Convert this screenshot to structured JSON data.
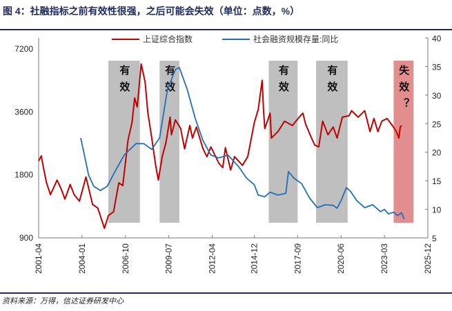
{
  "title": "图 4：社融指标之前有效性很强，之后可能会失效（单位：点数，%）",
  "source": "资料来源：万得，信达证券研发中心",
  "chart_data": {
    "type": "line",
    "title": "图 4：社融指标之前有效性很强，之后可能会失效（单位：点数，%）",
    "x_tick_labels": [
      "2001-04",
      "2004-01",
      "2006-10",
      "2009-07",
      "2012-04",
      "2014-12",
      "2017-09",
      "2020-06",
      "2023-03",
      "2025-12"
    ],
    "xlim": [
      "2001-04",
      "2025-12"
    ],
    "left_axis": {
      "scale": "log",
      "ylim": [
        900,
        7200
      ],
      "ticks": [
        900,
        1800,
        3600,
        7200
      ]
    },
    "right_axis": {
      "scale": "linear",
      "ylim": [
        5,
        40
      ],
      "ticks": [
        5,
        10,
        15,
        20,
        25,
        30,
        35,
        40
      ]
    },
    "legend_placement": "top-center",
    "grid": false,
    "series": [
      {
        "name": "上证综合指数",
        "axis": "left",
        "color": "#c00000",
        "points": [
          [
            "2001-04",
            2100
          ],
          [
            "2001-06",
            2220
          ],
          [
            "2001-08",
            1900
          ],
          [
            "2001-10",
            1650
          ],
          [
            "2002-01",
            1450
          ],
          [
            "2002-06",
            1700
          ],
          [
            "2002-09",
            1550
          ],
          [
            "2002-12",
            1380
          ],
          [
            "2003-04",
            1620
          ],
          [
            "2003-07",
            1450
          ],
          [
            "2003-11",
            1350
          ],
          [
            "2004-04",
            1760
          ],
          [
            "2004-09",
            1300
          ],
          [
            "2005-01",
            1250
          ],
          [
            "2005-06",
            1000
          ],
          [
            "2005-09",
            1150
          ],
          [
            "2006-01",
            1200
          ],
          [
            "2006-05",
            1650
          ],
          [
            "2006-08",
            1600
          ],
          [
            "2006-12",
            2650
          ],
          [
            "2007-03",
            3200
          ],
          [
            "2007-05",
            4200
          ],
          [
            "2007-07",
            3800
          ],
          [
            "2007-10",
            6100
          ],
          [
            "2008-01",
            5000
          ],
          [
            "2008-03",
            3600
          ],
          [
            "2008-06",
            2700
          ],
          [
            "2008-09",
            2000
          ],
          [
            "2008-11",
            1700
          ],
          [
            "2009-02",
            2200
          ],
          [
            "2009-05",
            2600
          ],
          [
            "2009-08",
            3400
          ],
          [
            "2009-09",
            2800
          ],
          [
            "2009-12",
            3300
          ],
          [
            "2010-04",
            3000
          ],
          [
            "2010-07",
            2400
          ],
          [
            "2010-11",
            3100
          ],
          [
            "2011-01",
            2700
          ],
          [
            "2011-04",
            3050
          ],
          [
            "2011-09",
            2400
          ],
          [
            "2011-12",
            2200
          ],
          [
            "2012-03",
            2450
          ],
          [
            "2012-09",
            2050
          ],
          [
            "2012-12",
            1950
          ],
          [
            "2013-02",
            2430
          ],
          [
            "2013-06",
            1900
          ],
          [
            "2013-09",
            2200
          ],
          [
            "2014-03",
            2000
          ],
          [
            "2014-07",
            2200
          ],
          [
            "2014-12",
            3200
          ],
          [
            "2015-03",
            3700
          ],
          [
            "2015-06",
            5100
          ],
          [
            "2015-07",
            3700
          ],
          [
            "2015-08",
            3000
          ],
          [
            "2015-12",
            3550
          ],
          [
            "2016-01",
            2700
          ],
          [
            "2016-06",
            2900
          ],
          [
            "2016-11",
            3250
          ],
          [
            "2017-05",
            3100
          ],
          [
            "2017-11",
            3450
          ],
          [
            "2018-01",
            3550
          ],
          [
            "2018-03",
            3150
          ],
          [
            "2018-07",
            2750
          ],
          [
            "2018-10",
            2500
          ],
          [
            "2019-01",
            2450
          ],
          [
            "2019-04",
            3250
          ],
          [
            "2019-08",
            2800
          ],
          [
            "2019-12",
            3050
          ],
          [
            "2020-03",
            2700
          ],
          [
            "2020-07",
            3400
          ],
          [
            "2020-12",
            3450
          ],
          [
            "2021-02",
            3650
          ],
          [
            "2021-07",
            3400
          ],
          [
            "2021-12",
            3650
          ],
          [
            "2022-04",
            2900
          ],
          [
            "2022-07",
            3350
          ],
          [
            "2022-10",
            2900
          ],
          [
            "2023-01",
            3250
          ],
          [
            "2023-05",
            3350
          ],
          [
            "2023-09",
            3100
          ],
          [
            "2023-12",
            2900
          ],
          [
            "2024-02",
            2700
          ],
          [
            "2024-03",
            3050
          ],
          [
            "2024-04",
            3100
          ]
        ]
      },
      {
        "name": "社会融资规模存量:同比",
        "axis": "right",
        "color": "#1f6fb8",
        "points": [
          [
            "2003-12",
            22.5
          ],
          [
            "2004-06",
            16
          ],
          [
            "2004-10",
            14
          ],
          [
            "2005-03",
            13.3
          ],
          [
            "2005-08",
            14
          ],
          [
            "2006-03",
            17
          ],
          [
            "2006-09",
            19.5
          ],
          [
            "2007-06",
            21.5
          ],
          [
            "2007-12",
            21.5
          ],
          [
            "2008-06",
            20.5
          ],
          [
            "2008-12",
            22.5
          ],
          [
            "2009-06",
            31
          ],
          [
            "2009-12",
            34.5
          ],
          [
            "2010-03",
            34.8
          ],
          [
            "2010-09",
            31
          ],
          [
            "2011-03",
            26
          ],
          [
            "2011-09",
            22
          ],
          [
            "2012-03",
            19.5
          ],
          [
            "2012-09",
            19
          ],
          [
            "2013-04",
            19.5
          ],
          [
            "2013-12",
            17.5
          ],
          [
            "2014-06",
            15.5
          ],
          [
            "2014-12",
            14.3
          ],
          [
            "2015-03",
            12.5
          ],
          [
            "2015-08",
            12.2
          ],
          [
            "2015-12",
            13
          ],
          [
            "2016-06",
            12.5
          ],
          [
            "2016-12",
            12.8
          ],
          [
            "2017-02",
            16.6
          ],
          [
            "2017-06",
            15.5
          ],
          [
            "2017-12",
            14.5
          ],
          [
            "2018-06",
            12
          ],
          [
            "2018-12",
            10.3
          ],
          [
            "2019-06",
            10.8
          ],
          [
            "2019-12",
            10.7
          ],
          [
            "2020-03",
            10.2
          ],
          [
            "2020-06",
            11.5
          ],
          [
            "2020-10",
            13.8
          ],
          [
            "2021-01",
            13.2
          ],
          [
            "2021-06",
            11.5
          ],
          [
            "2021-12",
            10.3
          ],
          [
            "2022-06",
            10.8
          ],
          [
            "2022-12",
            9.6
          ],
          [
            "2023-03",
            10
          ],
          [
            "2023-06",
            9.2
          ],
          [
            "2023-10",
            9.5
          ],
          [
            "2024-01",
            8.9
          ],
          [
            "2024-04",
            9.4
          ],
          [
            "2024-06",
            8.3
          ]
        ]
      }
    ],
    "annotations": [
      {
        "label": "有效",
        "start": "2005-09",
        "end": "2007-09",
        "color": "#bfbfbf"
      },
      {
        "label": "有效",
        "start": "2008-12",
        "end": "2010-03",
        "color": "#bfbfbf"
      },
      {
        "label": "有效",
        "start": "2015-11",
        "end": "2017-09",
        "color": "#bfbfbf"
      },
      {
        "label": "有效",
        "start": "2018-11",
        "end": "2020-11",
        "color": "#bfbfbf"
      },
      {
        "label": "失效？",
        "start": "2023-10",
        "end": "2025-01",
        "color": "#e38e8e"
      }
    ]
  }
}
